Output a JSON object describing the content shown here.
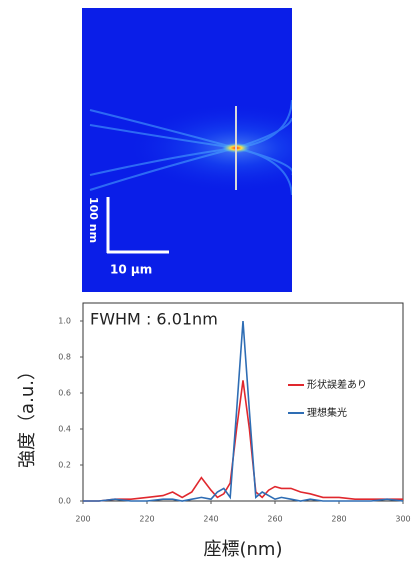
{
  "field_image": {
    "vertical_scale": "100 nm",
    "horizontal_scale": "10 µm"
  },
  "chart_data": {
    "type": "line",
    "annotation": "FWHM : 6.01nm",
    "x_label": "座標(nm)",
    "y_label": "強度（a.u.）",
    "x": [
      200,
      205,
      210,
      215,
      220,
      225,
      228,
      231,
      234,
      237,
      240,
      242,
      244,
      246,
      248,
      250,
      252,
      254,
      256,
      258,
      260,
      262,
      265,
      268,
      271,
      275,
      280,
      285,
      290,
      295,
      300
    ],
    "series": [
      {
        "name": "形状誤差あり",
        "color": "#e0282e",
        "values": [
          0,
          0,
          0.01,
          0.01,
          0.02,
          0.03,
          0.05,
          0.02,
          0.05,
          0.13,
          0.06,
          0.02,
          0.04,
          0.1,
          0.4,
          0.67,
          0.4,
          0.05,
          0.02,
          0.06,
          0.08,
          0.07,
          0.07,
          0.05,
          0.04,
          0.02,
          0.02,
          0.01,
          0.01,
          0.01,
          0.01
        ]
      },
      {
        "name": "理想集光",
        "color": "#2e6db4",
        "values": [
          0,
          0,
          0.01,
          0,
          0,
          0.01,
          0.01,
          0,
          0.01,
          0.02,
          0.01,
          0.05,
          0.07,
          0.02,
          0.5,
          1.0,
          0.5,
          0.02,
          0.05,
          0.03,
          0.01,
          0.02,
          0.01,
          0,
          0.01,
          0,
          0,
          0,
          0,
          0.01,
          0
        ]
      }
    ],
    "xlim": [
      200,
      300
    ],
    "xticks": [
      200,
      220,
      240,
      260,
      280,
      300
    ],
    "ylim": [
      0,
      1.1
    ],
    "yticks": [
      {
        "value": 0,
        "label": "0.0"
      },
      0.2,
      0.4,
      0.6,
      0.8,
      {
        "value": 1,
        "label": "1.0"
      }
    ],
    "grid": false,
    "legend": "right"
  }
}
